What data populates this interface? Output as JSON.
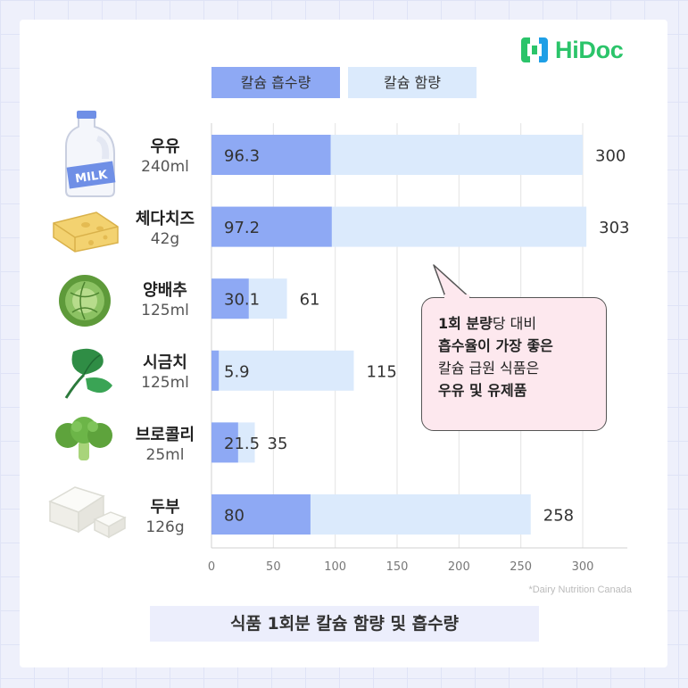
{
  "brand": {
    "name": "HiDoc",
    "color": "#2bc46a"
  },
  "legend": [
    {
      "label": "칼슘 흡수량",
      "color": "#8ea9f4"
    },
    {
      "label": "칼슘 함량",
      "color": "#dbeafc"
    }
  ],
  "foods": [
    {
      "name": "우유",
      "portion": "240ml",
      "icon": "milk-jug-icon"
    },
    {
      "name": "체다치즈",
      "portion": "42g",
      "icon": "cheese-icon"
    },
    {
      "name": "양배추",
      "portion": "125ml",
      "icon": "cabbage-icon"
    },
    {
      "name": "시금치",
      "portion": "125ml",
      "icon": "spinach-icon"
    },
    {
      "name": "브로콜리",
      "portion": "25ml",
      "icon": "broccoli-icon"
    },
    {
      "name": "두부",
      "portion": "126g",
      "icon": "tofu-icon"
    }
  ],
  "chart_data": {
    "type": "bar",
    "orientation": "horizontal",
    "categories": [
      "우유 240ml",
      "체다치즈 42g",
      "양배추 125ml",
      "시금치 125ml",
      "브로콜리 25ml",
      "두부 126g"
    ],
    "series": [
      {
        "name": "칼슘 흡수량",
        "values": [
          96.3,
          97.2,
          30.1,
          5.9,
          21.5,
          80
        ],
        "color": "#8ea9f4"
      },
      {
        "name": "칼슘 함량",
        "values": [
          300,
          303,
          61,
          115,
          35,
          258
        ],
        "color": "#dbeafc"
      }
    ],
    "value_labels_absorbed": [
      "96.3",
      "97.2",
      "30.1",
      "5.9",
      "21.5",
      "80"
    ],
    "value_labels_content": [
      "300",
      "303",
      "61",
      "115",
      "35",
      "258"
    ],
    "xticks": [
      0,
      50,
      100,
      150,
      200,
      250,
      300
    ],
    "xlim": [
      0,
      335
    ],
    "grid": "vertical",
    "legend_placement": "top",
    "title": "식품 1회분 칼슘 함량 및 흡수량",
    "xlabel": "",
    "ylabel": ""
  },
  "callout": {
    "line1_bold": "1회 분량",
    "line1_rest": "당 대비",
    "line2": "흡수율이 가장 좋은",
    "line3": "칼슘 급원 식품은",
    "line4": "우유 및 유제품"
  },
  "source": "*Dairy Nutrition Canada"
}
